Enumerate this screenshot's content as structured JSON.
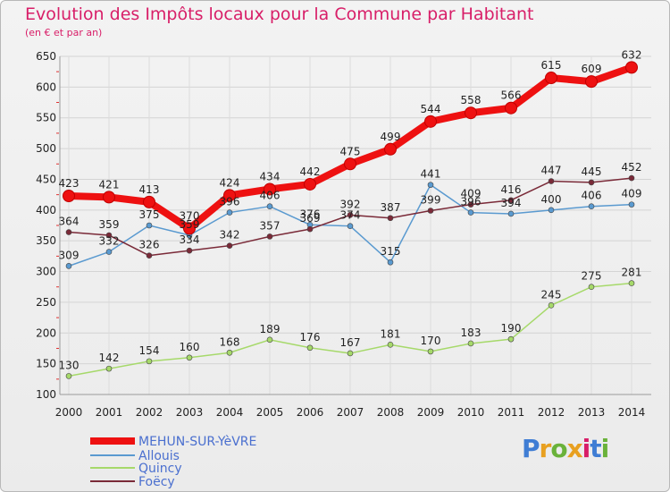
{
  "header": {
    "title": "Evolution des Impôts locaux pour la Commune par Habitant",
    "subtitle": "(en € et par an)"
  },
  "logo": {
    "text": "Proxiti",
    "colors": [
      "#3f7dd4",
      "#e8a020",
      "#6ab23a",
      "#e8a020",
      "#d81e68",
      "#3f7dd4",
      "#6ab23a"
    ]
  },
  "chart_data": {
    "type": "line",
    "categories": [
      "2000",
      "2001",
      "2002",
      "2003",
      "2004",
      "2005",
      "2006",
      "2007",
      "2008",
      "2009",
      "2010",
      "2011",
      "2012",
      "2013",
      "2014"
    ],
    "ylim": [
      100,
      650
    ],
    "yticks": [
      100,
      150,
      200,
      250,
      300,
      350,
      400,
      450,
      500,
      550,
      600,
      650
    ],
    "grid": true,
    "legend_position": "bottom-left",
    "series": [
      {
        "name": "MEHUN-SUR-YèVRE",
        "color": "#ee1111",
        "emphasis": true,
        "values": [
          423,
          421,
          413,
          370,
          424,
          434,
          442,
          475,
          499,
          544,
          558,
          566,
          615,
          609,
          632
        ]
      },
      {
        "name": "Allouis",
        "color": "#5a9ad0",
        "values": [
          309,
          332,
          375,
          359,
          396,
          406,
          376,
          374,
          315,
          441,
          396,
          394,
          400,
          406,
          409
        ]
      },
      {
        "name": "Quincy",
        "color": "#a6d96a",
        "values": [
          130,
          142,
          154,
          160,
          168,
          189,
          176,
          167,
          181,
          170,
          183,
          190,
          245,
          275,
          281
        ]
      },
      {
        "name": "Foëcy",
        "color": "#7a2a38",
        "values": [
          364,
          359,
          326,
          334,
          342,
          357,
          369,
          392,
          387,
          399,
          409,
          416,
          447,
          445,
          452
        ]
      }
    ]
  }
}
